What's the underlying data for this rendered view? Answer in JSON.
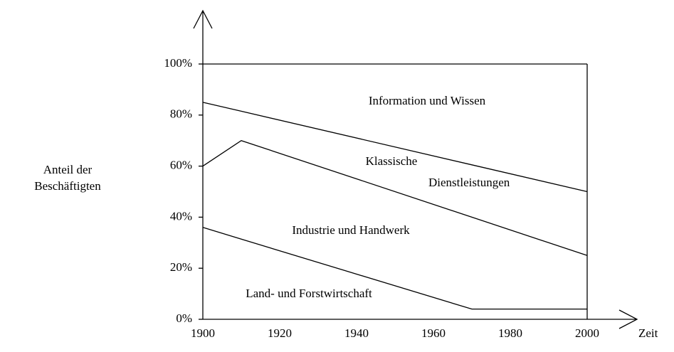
{
  "chart_data": {
    "type": "area",
    "stacked": true,
    "ylabel": [
      "Anteil der",
      "Beschäftigten"
    ],
    "xlabel": "Zeit",
    "x": [
      1900,
      1910,
      1970,
      2000
    ],
    "series": [
      {
        "name": "Land- und Forstwirtschaft",
        "color": "#000000",
        "values": [
          36,
          31.4,
          4,
          4
        ]
      },
      {
        "name": "Industrie und Handwerk",
        "color": "#000000",
        "values": [
          24,
          38.6,
          36,
          21
        ]
      },
      {
        "name": "Klassische Dienstleistungen",
        "color": "#000000",
        "values": [
          25,
          11.5,
          20.5,
          25
        ]
      },
      {
        "name": "Information und Wissen",
        "color": "#000000",
        "values": [
          15,
          18.5,
          39.5,
          50
        ]
      }
    ],
    "xlim": [
      1900,
      2000
    ],
    "xticks": [
      1900,
      1920,
      1940,
      1960,
      1980,
      2000
    ],
    "ylim": [
      0,
      100
    ],
    "yticks": [
      {
        "value": 0,
        "label": "0%"
      },
      {
        "value": 20,
        "label": "20%"
      },
      {
        "value": 40,
        "label": "40%"
      },
      {
        "value": 60,
        "label": "60%"
      },
      {
        "value": 80,
        "label": "80%"
      },
      {
        "value": 100,
        "label": "100%"
      }
    ]
  }
}
